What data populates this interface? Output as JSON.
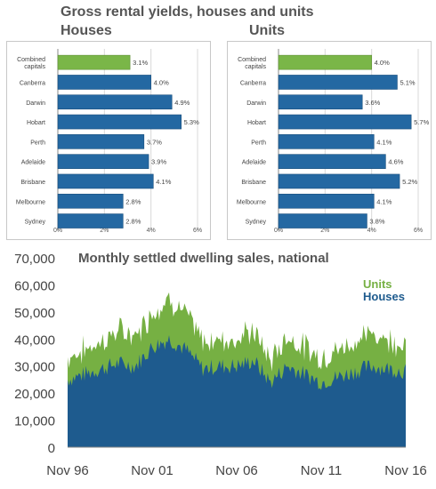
{
  "header": {
    "title": "Gross rental yields, houses and units",
    "houses_title": "Houses",
    "units_title": "Units"
  },
  "colors": {
    "green": "#76b043",
    "blue": "#2468a2",
    "dark_blue": "#1e5b8e",
    "bar_green": "#7ab648",
    "title_grey": "#555555"
  },
  "chart_data": [
    {
      "type": "bar",
      "orientation": "horizontal",
      "title": "Houses",
      "categories": [
        "Combined capitals",
        "Canberra",
        "Darwin",
        "Hobart",
        "Perth",
        "Adelaide",
        "Brisbane",
        "Melbourne",
        "Sydney"
      ],
      "values": [
        3.1,
        4.0,
        4.9,
        5.3,
        3.7,
        3.9,
        4.1,
        2.8,
        2.8
      ],
      "value_labels": [
        "3.1%",
        "4.0%",
        "4.9%",
        "5.3%",
        "3.7%",
        "3.9%",
        "4.1%",
        "2.8%",
        "2.8%"
      ],
      "highlight_index": 0,
      "xlim": [
        0,
        6
      ],
      "xticks": [
        "0%",
        "2%",
        "4%",
        "6%"
      ]
    },
    {
      "type": "bar",
      "orientation": "horizontal",
      "title": "Units",
      "categories": [
        "Combined capitals",
        "Canberra",
        "Darwin",
        "Hobart",
        "Perth",
        "Adelaide",
        "Brisbane",
        "Melbourne",
        "Sydney"
      ],
      "values": [
        4.0,
        5.1,
        3.6,
        5.7,
        4.1,
        4.6,
        5.2,
        4.1,
        3.8
      ],
      "value_labels": [
        "4.0%",
        "5.1%",
        "3.6%",
        "5.7%",
        "4.1%",
        "4.6%",
        "5.2%",
        "4.1%",
        "3.8%"
      ],
      "highlight_index": 0,
      "xlim": [
        0,
        6
      ],
      "xticks": [
        "0%",
        "2%",
        "4%",
        "6%"
      ]
    },
    {
      "type": "area",
      "stacked": true,
      "title": "Monthly settled dwelling sales, national",
      "ylim": [
        0,
        70000
      ],
      "yticks": [
        "70,000",
        "60,000",
        "50,000",
        "40,000",
        "30,000",
        "20,000",
        "10,000",
        "0"
      ],
      "xticks": [
        "Nov 96",
        "Nov 01",
        "Nov 06",
        "Nov 11",
        "Nov 16"
      ],
      "legend": [
        "Units",
        "Houses"
      ],
      "legend_position": "top-right",
      "x_start": "1996-11",
      "x_end": "2016-11",
      "series": [
        {
          "name": "Houses",
          "color": "#1e5b8e",
          "anchors_x": [
            "1996-11",
            "1997-11",
            "1998-11",
            "1999-11",
            "2000-11",
            "2001-11",
            "2002-11",
            "2003-11",
            "2004-11",
            "2005-11",
            "2006-11",
            "2007-11",
            "2008-11",
            "2009-11",
            "2010-11",
            "2011-11",
            "2012-11",
            "2013-11",
            "2014-11",
            "2015-11",
            "2016-11"
          ],
          "anchors_y": [
            25000,
            27000,
            29000,
            31000,
            30000,
            37000,
            40000,
            36000,
            29000,
            30000,
            30000,
            32000,
            24000,
            30000,
            27000,
            24000,
            26000,
            28000,
            30000,
            29000,
            28000
          ]
        },
        {
          "name": "Units",
          "color": "#76b043",
          "anchors_x": [
            "1996-11",
            "1997-11",
            "1998-11",
            "1999-11",
            "2000-11",
            "2001-11",
            "2002-11",
            "2003-11",
            "2004-11",
            "2005-11",
            "2006-11",
            "2007-11",
            "2008-11",
            "2009-11",
            "2010-11",
            "2011-11",
            "2012-11",
            "2013-11",
            "2014-11",
            "2015-11",
            "2016-11"
          ],
          "anchors_y": [
            8000,
            9000,
            10000,
            12000,
            11000,
            13000,
            15000,
            13000,
            10000,
            10000,
            10000,
            11000,
            8000,
            11000,
            10000,
            9000,
            10000,
            11000,
            12000,
            11000,
            10000
          ]
        }
      ]
    }
  ]
}
